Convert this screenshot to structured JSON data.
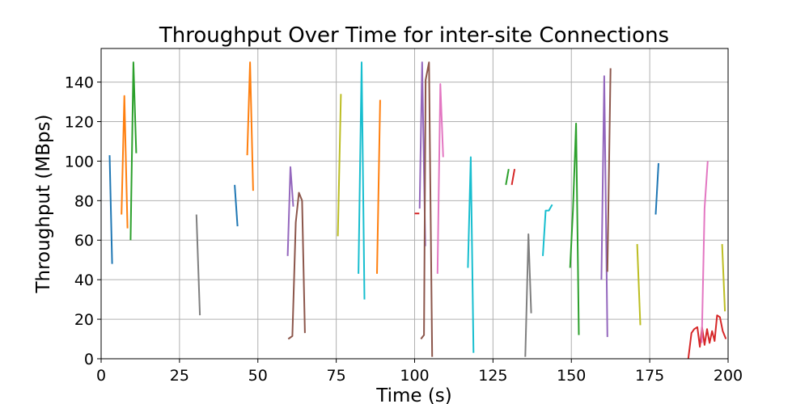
{
  "chart_data": {
    "type": "line",
    "title": "Throughput Over Time for inter-site Connections",
    "xlabel": "Time (s)",
    "ylabel": "Throughput (MBps)",
    "xlim": [
      0,
      200
    ],
    "ylim": [
      0,
      157
    ],
    "xticks": [
      0,
      25,
      50,
      75,
      100,
      125,
      150,
      175,
      200
    ],
    "yticks": [
      0,
      20,
      40,
      60,
      80,
      100,
      120,
      140
    ],
    "grid": true,
    "legend": "none",
    "series": [
      {
        "color": "#1f77b4",
        "points": [
          [
            2.7,
            103
          ],
          [
            3.5,
            48
          ]
        ]
      },
      {
        "color": "#ff7f0e",
        "points": [
          [
            6.5,
            73
          ],
          [
            7.4,
            133
          ],
          [
            8.4,
            66
          ]
        ]
      },
      {
        "color": "#2ca02c",
        "points": [
          [
            9.4,
            60
          ],
          [
            10.3,
            150
          ],
          [
            11.2,
            104
          ]
        ]
      },
      {
        "color": "#7f7f7f",
        "points": [
          [
            30.4,
            73
          ],
          [
            31.5,
            22
          ]
        ]
      },
      {
        "color": "#1f77b4",
        "points": [
          [
            42.6,
            88
          ],
          [
            43.5,
            67
          ]
        ]
      },
      {
        "color": "#ff7f0e",
        "points": [
          [
            46.6,
            103
          ],
          [
            47.5,
            150
          ],
          [
            48.5,
            85
          ]
        ]
      },
      {
        "color": "#9467bd",
        "points": [
          [
            59.5,
            52
          ],
          [
            60.4,
            97
          ],
          [
            61.3,
            77
          ]
        ]
      },
      {
        "color": "#8c564b",
        "points": [
          [
            59.7,
            10
          ],
          [
            61.0,
            11.5
          ],
          [
            62.1,
            69
          ],
          [
            63.1,
            84
          ],
          [
            64.1,
            80
          ],
          [
            65.0,
            13
          ]
        ]
      },
      {
        "color": "#bcbd22",
        "points": [
          [
            75.5,
            62
          ],
          [
            76.5,
            134
          ]
        ]
      },
      {
        "color": "#17becf",
        "points": [
          [
            82.1,
            43
          ],
          [
            83.1,
            150
          ],
          [
            84.0,
            30
          ]
        ]
      },
      {
        "color": "#ff7f0e",
        "points": [
          [
            88.0,
            43
          ],
          [
            89.0,
            131
          ]
        ]
      },
      {
        "color": "#d62728",
        "points": [
          [
            100.0,
            73.5
          ],
          [
            101.5,
            73.5
          ]
        ]
      },
      {
        "color": "#9467bd",
        "points": [
          [
            101.6,
            76
          ],
          [
            102.4,
            150
          ],
          [
            103.4,
            57
          ]
        ]
      },
      {
        "color": "#8c564b",
        "points": [
          [
            102.0,
            10
          ],
          [
            103.0,
            12
          ],
          [
            103.5,
            141
          ],
          [
            104.6,
            150
          ],
          [
            105.6,
            1
          ]
        ]
      },
      {
        "color": "#e377c2",
        "points": [
          [
            107.3,
            43
          ],
          [
            108.2,
            139
          ],
          [
            109.1,
            102
          ]
        ]
      },
      {
        "color": "#17becf",
        "points": [
          [
            117.0,
            46
          ],
          [
            117.9,
            102
          ],
          [
            118.8,
            3
          ]
        ]
      },
      {
        "color": "#2ca02c",
        "points": [
          [
            129.1,
            88
          ],
          [
            130.0,
            96
          ]
        ]
      },
      {
        "color": "#d62728",
        "points": [
          [
            131.0,
            88
          ],
          [
            131.9,
            96
          ]
        ]
      },
      {
        "color": "#7f7f7f",
        "points": [
          [
            135.3,
            1
          ],
          [
            136.3,
            63
          ],
          [
            137.2,
            23
          ]
        ]
      },
      {
        "color": "#17becf",
        "points": [
          [
            140.9,
            52
          ],
          [
            141.8,
            75
          ],
          [
            142.8,
            75
          ],
          [
            143.9,
            78
          ]
        ]
      },
      {
        "color": "#2ca02c",
        "points": [
          [
            149.6,
            46
          ],
          [
            150.5,
            75
          ],
          [
            151.5,
            119
          ],
          [
            152.4,
            12
          ]
        ]
      },
      {
        "color": "#9467bd",
        "points": [
          [
            159.6,
            40
          ],
          [
            160.5,
            143
          ],
          [
            161.5,
            11
          ]
        ]
      },
      {
        "color": "#8c564b",
        "points": [
          [
            161.5,
            44
          ],
          [
            162.5,
            147
          ]
        ]
      },
      {
        "color": "#bcbd22",
        "points": [
          [
            171.0,
            58
          ],
          [
            172.0,
            17
          ]
        ]
      },
      {
        "color": "#1f77b4",
        "points": [
          [
            176.9,
            73
          ],
          [
            177.8,
            99
          ]
        ]
      },
      {
        "color": "#d62728",
        "points": [
          [
            187.3,
            0
          ],
          [
            188.3,
            13
          ],
          [
            189.2,
            15
          ],
          [
            190.2,
            16
          ],
          [
            191.0,
            6
          ],
          [
            191.7,
            16
          ],
          [
            192.5,
            7
          ],
          [
            193.3,
            15
          ],
          [
            194.1,
            8
          ],
          [
            194.9,
            14
          ],
          [
            195.7,
            9
          ],
          [
            196.5,
            22
          ],
          [
            197.4,
            21
          ],
          [
            198.3,
            14
          ],
          [
            199.3,
            10
          ]
        ]
      },
      {
        "color": "#e377c2",
        "points": [
          [
            191.6,
            8
          ],
          [
            192.5,
            76
          ],
          [
            193.5,
            100
          ]
        ]
      },
      {
        "color": "#bcbd22",
        "points": [
          [
            198.1,
            58
          ],
          [
            199.0,
            24
          ]
        ]
      }
    ]
  }
}
